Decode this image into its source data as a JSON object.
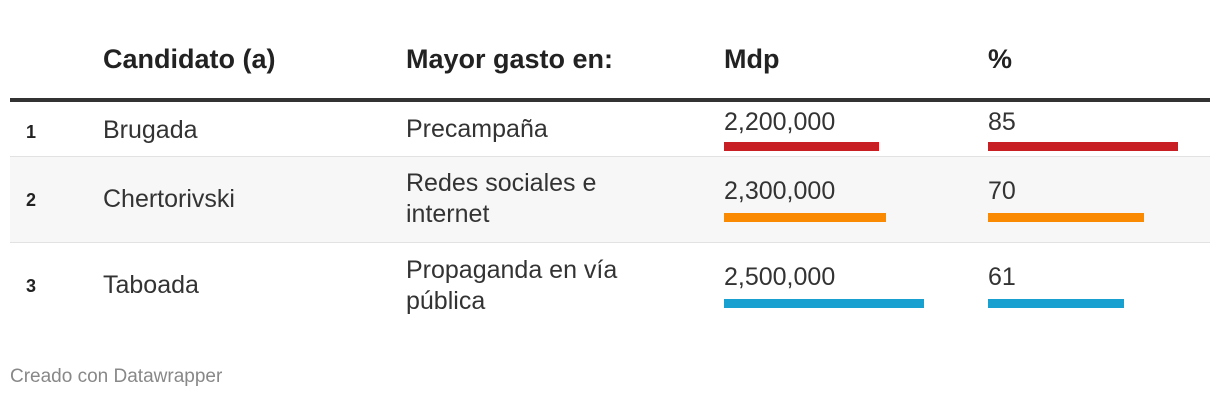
{
  "headers": {
    "rank": "",
    "candidate": "Candidato (a)",
    "expense": "Mayor gasto en:",
    "amount": "Mdp",
    "percent": "%"
  },
  "rows": [
    {
      "rank": "1",
      "candidate": "Brugada",
      "expense": "Precampaña",
      "amount_label": "2,200,000",
      "percent_label": "85",
      "color": "#c81f24"
    },
    {
      "rank": "2",
      "candidate": "Chertorivski",
      "expense": "Redes sociales e internet",
      "amount_label": "2,300,000",
      "percent_label": "70",
      "color": "#f98a02"
    },
    {
      "rank": "3",
      "candidate": "Taboada",
      "expense": "Propaganda en vía pública",
      "amount_label": "2,500,000",
      "percent_label": "61",
      "color": "#18a0d1"
    }
  ],
  "footer": "Creado con Datawrapper",
  "chart_data": {
    "type": "table",
    "columns": [
      "",
      "Candidato (a)",
      "Mayor gasto en:",
      "Mdp",
      "%"
    ],
    "rows": [
      [
        "1",
        "Brugada",
        "Precampaña",
        2200000,
        85
      ],
      [
        "2",
        "Chertorivski",
        "Redes sociales e internet",
        2300000,
        70
      ],
      [
        "3",
        "Taboada",
        "Propaganda en vía pública",
        2500000,
        61
      ]
    ],
    "bar_columns": {
      "Mdp": {
        "max": 2500000
      },
      "%": {
        "max": 85
      }
    }
  }
}
